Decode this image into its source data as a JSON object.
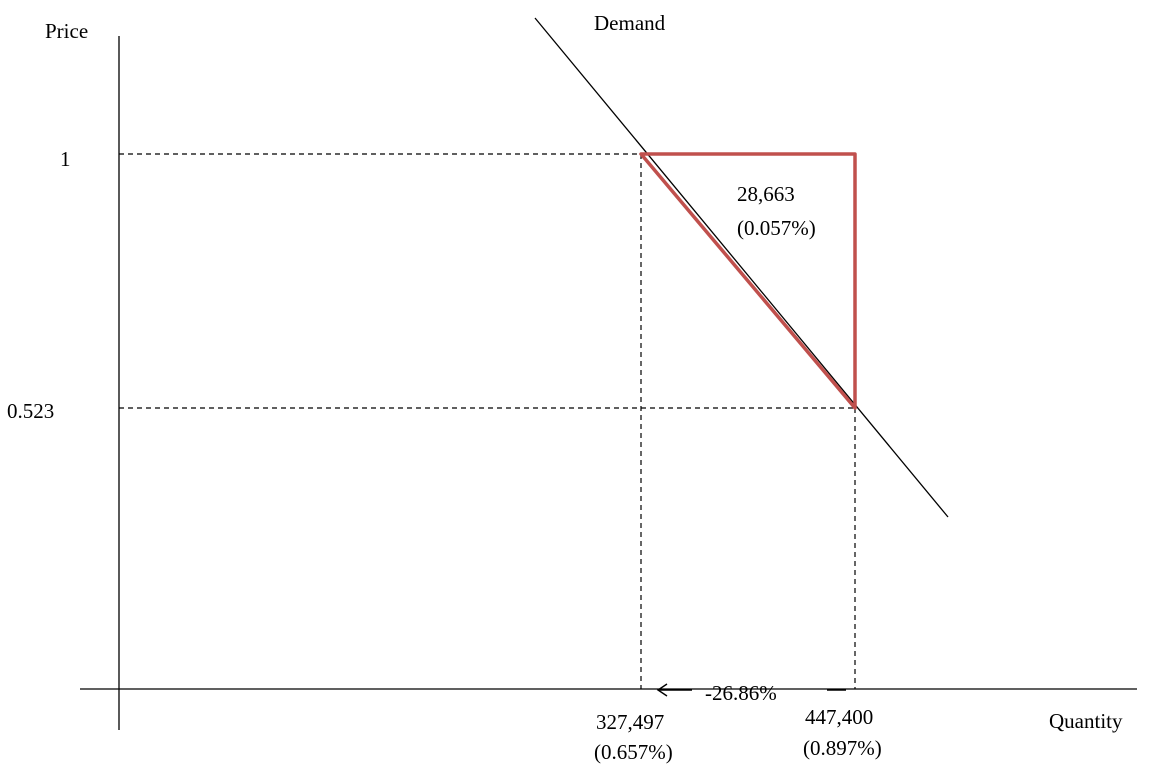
{
  "axes": {
    "y_label": "Price",
    "x_label": "Quantity"
  },
  "demand_label": "Demand",
  "price_ticks": {
    "high": "1",
    "low": "0.523"
  },
  "quantity_ticks": {
    "q1": {
      "value": "327,497",
      "share": "(0.657%)"
    },
    "q2": {
      "value": "447,400",
      "share": "(0.897%)"
    }
  },
  "triangle": {
    "value": "28,663",
    "share": "(0.057%)",
    "color": "#c0504d"
  },
  "change_label": "-26.86%"
}
